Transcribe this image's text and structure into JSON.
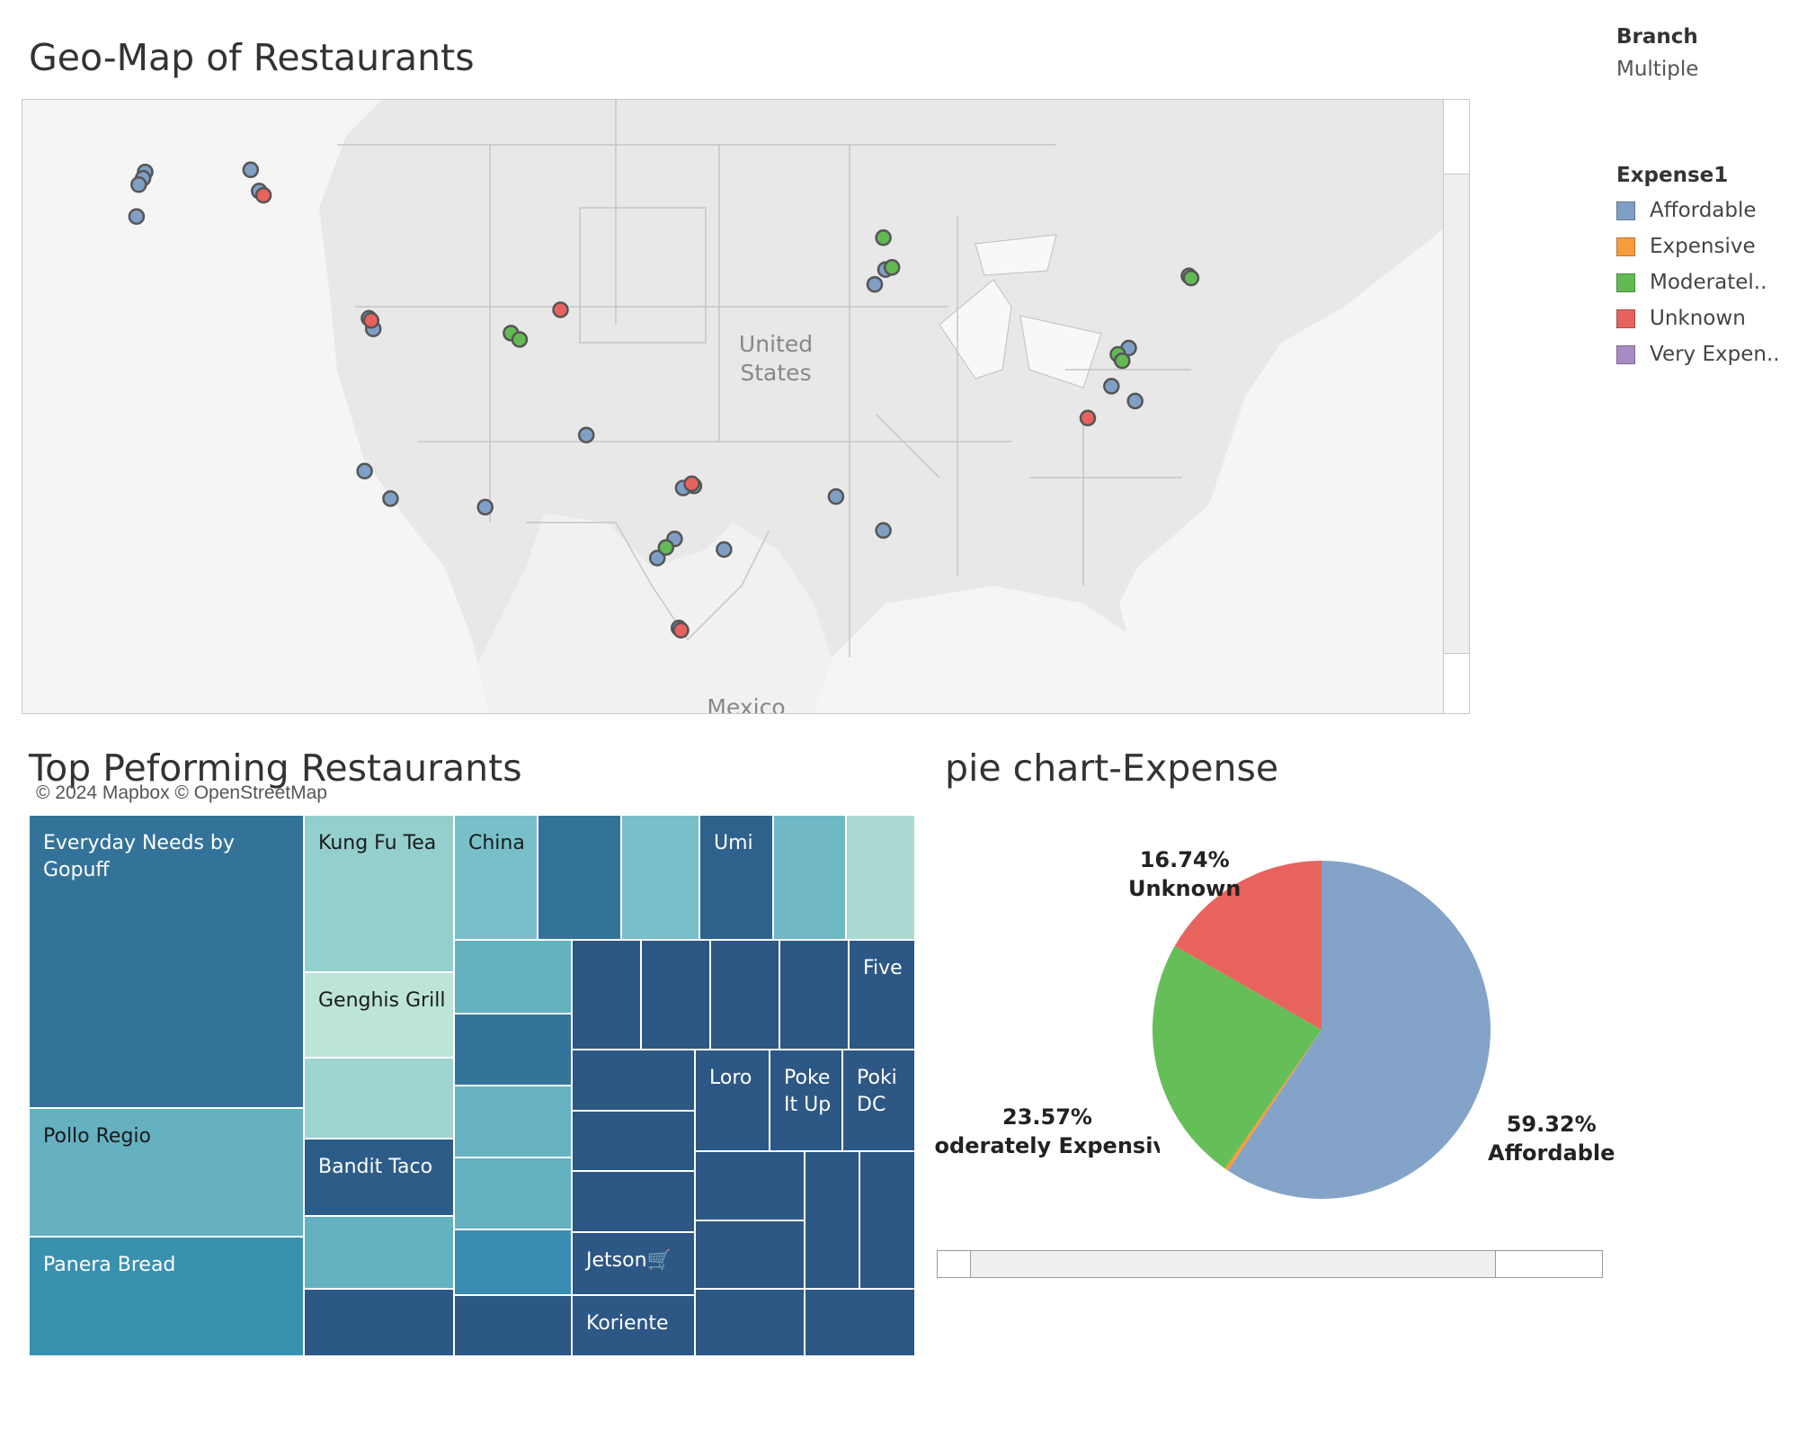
{
  "map": {
    "title": "Geo-Map of Restaurants",
    "country_label_line1": "United",
    "country_label_line2": "States",
    "neighbor_label": "Mexico",
    "attribution": "© 2024 Mapbox © OpenStreetMap"
  },
  "filters": {
    "branch_heading": "Branch",
    "branch_value": "Multiple",
    "expense_heading": "Expense1",
    "expense_items": [
      {
        "label": "Affordable",
        "color": "#7f9fc6"
      },
      {
        "label": "Expensive",
        "color": "#f89b3d"
      },
      {
        "label": "Moderatel..",
        "color": "#62ba53"
      },
      {
        "label": "Unknown",
        "color": "#e7625e"
      },
      {
        "label": "Very Expen..",
        "color": "#a78bc4"
      }
    ]
  },
  "treemap": {
    "title": "Top Peforming Restaurants",
    "labels": {
      "everyday": "Everyday Needs by Gopuff",
      "pollo": "Pollo Regio",
      "panera": "Panera Bread",
      "kungfu": "Kung Fu Tea",
      "genghis": "Genghis Grill",
      "bandit": "Bandit Taco",
      "china": "China",
      "umi": "Umi",
      "five": "Five",
      "loro": "Loro",
      "poke": "Poke It Up",
      "poki": "Poki DC",
      "jetson": "Jetson🛒",
      "koriente": "Koriente"
    }
  },
  "pie": {
    "title": "pie chart-Expense",
    "slices": [
      {
        "label": "Affordable",
        "pct_text": "59.32%",
        "color": "#83a3c8"
      },
      {
        "label": "Expensive",
        "pct_text": "",
        "color": "#f89b3d"
      },
      {
        "label": "Moderately Expensive",
        "pct_text": "23.57%",
        "color": "#66be58"
      },
      {
        "label": "Unknown",
        "pct_text": "16.74%",
        "color": "#e8635d"
      }
    ]
  },
  "chart_data": [
    {
      "type": "pie",
      "title": "pie chart-Expense",
      "categories": [
        "Affordable",
        "Expensive",
        "Moderately Expensive",
        "Unknown",
        "Very Expensive"
      ],
      "values": [
        59.32,
        0.37,
        23.57,
        16.74,
        0.0
      ],
      "colors": [
        "#83a3c8",
        "#f89b3d",
        "#66be58",
        "#e8635d",
        "#a78bc4"
      ]
    },
    {
      "type": "scatter",
      "title": "Geo-Map of Restaurants",
      "x_label": "",
      "y_label": "",
      "series": [
        {
          "name": "Affordable",
          "points": [
            [
              -122.3,
              47.6
            ],
            [
              -122.4,
              47.3
            ],
            [
              -122.6,
              47.0
            ],
            [
              -122.7,
              45.5
            ],
            [
              -117.4,
              47.7
            ],
            [
              -117.0,
              46.7
            ],
            [
              -111.9,
              40.7
            ],
            [
              -111.7,
              40.2
            ],
            [
              -112.1,
              33.5
            ],
            [
              -110.9,
              32.2
            ],
            [
              -106.5,
              31.8
            ],
            [
              -101.8,
              35.2
            ],
            [
              -97.3,
              32.7
            ],
            [
              -96.8,
              32.8
            ],
            [
              -95.4,
              29.8
            ],
            [
              -98.5,
              29.4
            ],
            [
              -97.7,
              30.3
            ],
            [
              -90.2,
              32.3
            ],
            [
              -88.0,
              30.7
            ],
            [
              -87.9,
              43.0
            ],
            [
              -88.4,
              42.3
            ],
            [
              -77.0,
              38.9
            ],
            [
              -76.6,
              39.3
            ],
            [
              -77.4,
              37.5
            ],
            [
              -76.3,
              36.8
            ],
            [
              -73.8,
              42.7
            ],
            [
              -97.5,
              26.1
            ]
          ]
        },
        {
          "name": "Moderately Expensive",
          "points": [
            [
              -105.3,
              40.0
            ],
            [
              -104.9,
              39.7
            ],
            [
              -88.0,
              44.5
            ],
            [
              -87.6,
              43.1
            ],
            [
              -77.1,
              39.0
            ],
            [
              -76.9,
              38.7
            ],
            [
              -73.7,
              42.6
            ],
            [
              -98.1,
              29.9
            ]
          ]
        },
        {
          "name": "Unknown",
          "points": [
            [
              -116.8,
              46.5
            ],
            [
              -103.0,
              41.1
            ],
            [
              -111.8,
              40.6
            ],
            [
              -96.9,
              32.9
            ],
            [
              -78.5,
              36.0
            ],
            [
              -97.4,
              26.0
            ]
          ]
        },
        {
          "name": "Expensive",
          "points": []
        },
        {
          "name": "Very Expensive",
          "points": []
        }
      ]
    },
    {
      "type": "treemap",
      "title": "Top Peforming Restaurants",
      "categories": [
        "Everyday Needs by Gopuff",
        "Pollo Regio",
        "Panera Bread",
        "Kung Fu Tea",
        "Genghis Grill",
        "Bandit Taco",
        "China",
        "Umi",
        "Five",
        "Loro",
        "Poke It Up",
        "Poki DC",
        "Jetson🛒",
        "Koriente"
      ]
    }
  ]
}
